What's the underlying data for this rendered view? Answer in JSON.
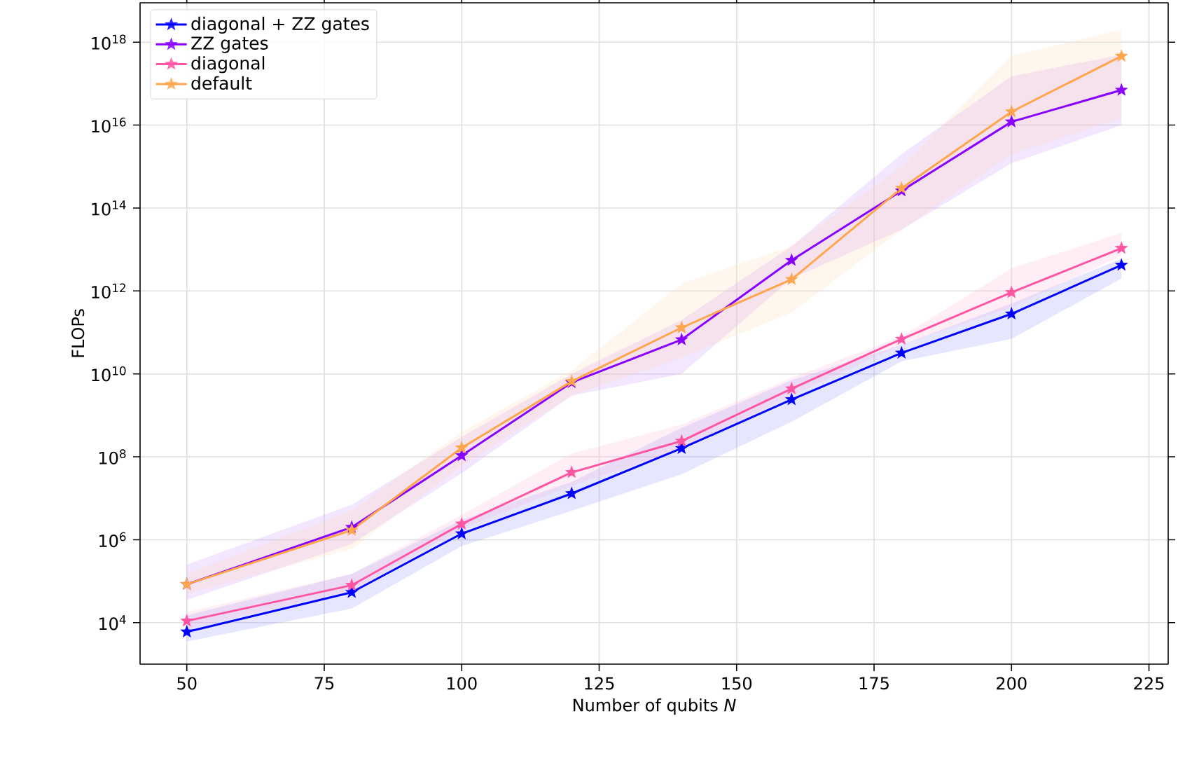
{
  "chart_data": {
    "type": "line",
    "xlabel": "Number of qubits *N*",
    "ylabel": "FLOPs",
    "x": [
      50,
      80,
      100,
      120,
      140,
      160,
      180,
      200,
      220
    ],
    "series": [
      {
        "name": "diagonal + ZZ gates",
        "color": "#0000ff",
        "values": [
          6000.0,
          54000.0,
          1400000.0,
          13000000.0,
          160000000.0,
          2400000000.0,
          32000000000.0,
          280000000000.0,
          4200000000000.0
        ],
        "lower": [
          3500.0,
          22000.0,
          700000.0,
          5000000.0,
          38000000.0,
          700000000.0,
          20000000000.0,
          70000000000.0,
          2000000000000.0
        ],
        "upper": [
          15000.0,
          150000.0,
          3000000.0,
          25000000.0,
          500000000.0,
          7000000000.0,
          50000000000.0,
          500000000000.0,
          6000000000000.0
        ]
      },
      {
        "name": "ZZ gates",
        "color": "#8800ff",
        "values": [
          84000.0,
          2000000.0,
          107000000.0,
          6200000000.0,
          67000000000.0,
          5500000000000.0,
          260000000000000.0,
          1.2e+16,
          7e+16
        ],
        "lower": [
          35000.0,
          800000.0,
          40000000.0,
          3000000000.0,
          10000000000.0,
          2000000000000.0,
          30000000000000.0,
          1200000000000000.0,
          1e+16
        ],
        "upper": [
          250000.0,
          7000000.0,
          300000000.0,
          10000000000.0,
          200000000000.0,
          12000000000000.0,
          2000000000000000.0,
          1.5e+17,
          5e+17
        ]
      },
      {
        "name": "diagonal",
        "color": "#ff55a3",
        "values": [
          11000.0,
          80000.0,
          2400000.0,
          42000000.0,
          240000000.0,
          4400000000.0,
          69000000000.0,
          920000000000.0,
          10700000000000.0
        ],
        "lower": [
          7000.0,
          60000.0,
          1800000.0,
          20000000.0,
          150000000.0,
          3000000000.0,
          50000000000.0,
          400000000000.0,
          7000000000000.0
        ],
        "upper": [
          18000.0,
          150000.0,
          4000000.0,
          120000000.0,
          600000000.0,
          8000000000.0,
          80000000000.0,
          3500000000000.0,
          25000000000000.0
        ]
      },
      {
        "name": "default",
        "color": "#ffa64d",
        "values": [
          84000.0,
          1700000.0,
          165000000.0,
          6600000000.0,
          130000000000.0,
          1900000000000.0,
          300000000000000.0,
          2.1e+16,
          4.6e+17
        ],
        "lower": [
          50000.0,
          600000.0,
          60000000.0,
          3000000000.0,
          25000000000.0,
          300000000000.0,
          30000000000000.0,
          2000000000000000.0,
          1.5e+16
        ],
        "upper": [
          150000.0,
          5000000.0,
          400000000.0,
          12000000000.0,
          1500000000000.0,
          12000000000000.0,
          1000000000000000.0,
          4.7e+17,
          2e+18
        ]
      }
    ],
    "log": "y",
    "xlim": [
      41.5,
      228.5
    ],
    "ylim": [
      1000.0,
      8.9e+18
    ],
    "xticks": [
      50,
      75,
      100,
      125,
      150,
      175,
      200,
      225
    ],
    "yticks": [
      {
        "value": 10000.0,
        "label": "10$^{4}$"
      },
      {
        "value": 1000000.0,
        "label": "10$^{6}$"
      },
      {
        "value": 100000000.0,
        "label": "10$^{8}$"
      },
      {
        "value": 10000000000.0,
        "label": "10$^{10}$"
      },
      {
        "value": 1000000000000.0,
        "label": "10$^{12}$"
      },
      {
        "value": 100000000000000.0,
        "label": "10$^{14}$"
      },
      {
        "value": 1e+16,
        "label": "10$^{16}$"
      },
      {
        "value": 1e+18,
        "label": "10$^{18}$"
      }
    ],
    "grid": true,
    "legend": "top left",
    "marker": "star",
    "line_style": "solid"
  }
}
